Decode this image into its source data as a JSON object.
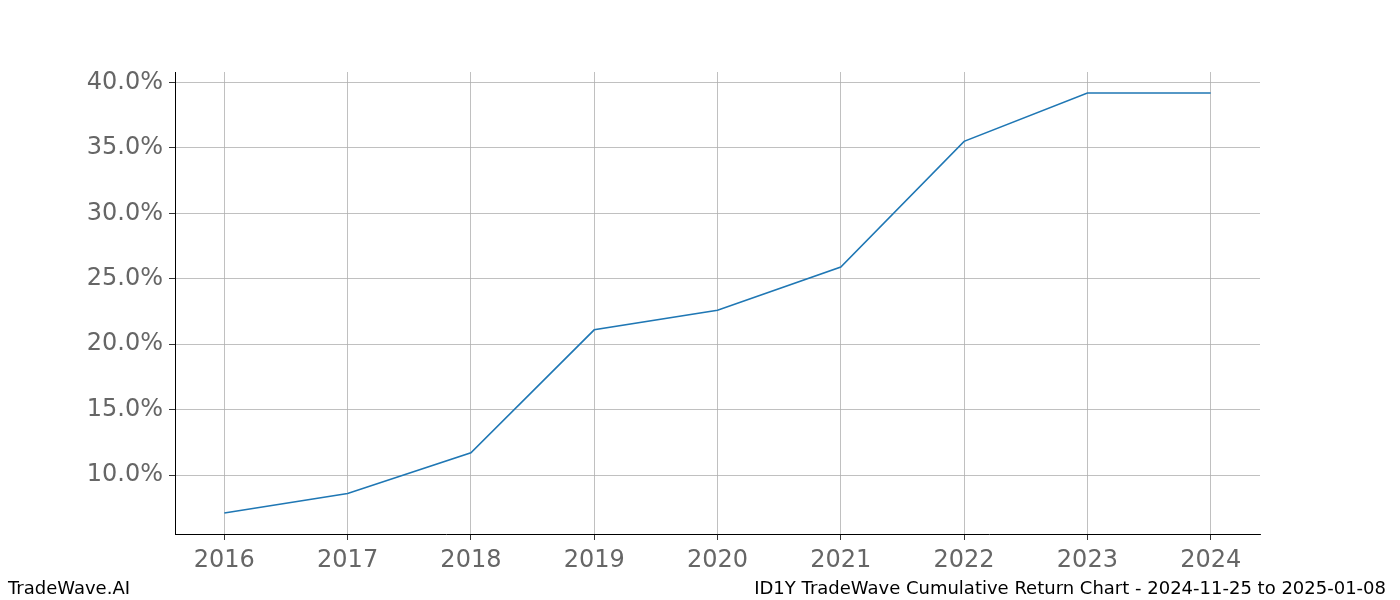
{
  "chart_data": {
    "type": "line",
    "title": "ID1Y TradeWave Cumulative Return Chart - 2024-11-25 to 2025-01-08",
    "annotations": [
      "TradeWave.AI"
    ],
    "x": [
      2016,
      2017,
      2018,
      2019,
      2020,
      2021,
      2022,
      2023,
      2024
    ],
    "values": [
      7.1,
      8.6,
      11.7,
      21.1,
      22.6,
      25.9,
      35.5,
      39.2,
      39.2
    ],
    "color": "#1f77b4",
    "xlim": [
      2015.6,
      2024.4
    ],
    "xticks": [
      2016,
      2017,
      2018,
      2019,
      2020,
      2021,
      2022,
      2023,
      2024
    ],
    "ylim": [
      5.5,
      40.8
    ],
    "yticks": [
      {
        "value": 10,
        "label": "10.0%"
      },
      {
        "value": 15,
        "label": "15.0%"
      },
      {
        "value": 20,
        "label": "20.0%"
      },
      {
        "value": 25,
        "label": "25.0%"
      },
      {
        "value": 30,
        "label": "30.0%"
      },
      {
        "value": 35,
        "label": "35.0%"
      },
      {
        "value": 40,
        "label": "40.0%"
      }
    ],
    "grid": true
  }
}
